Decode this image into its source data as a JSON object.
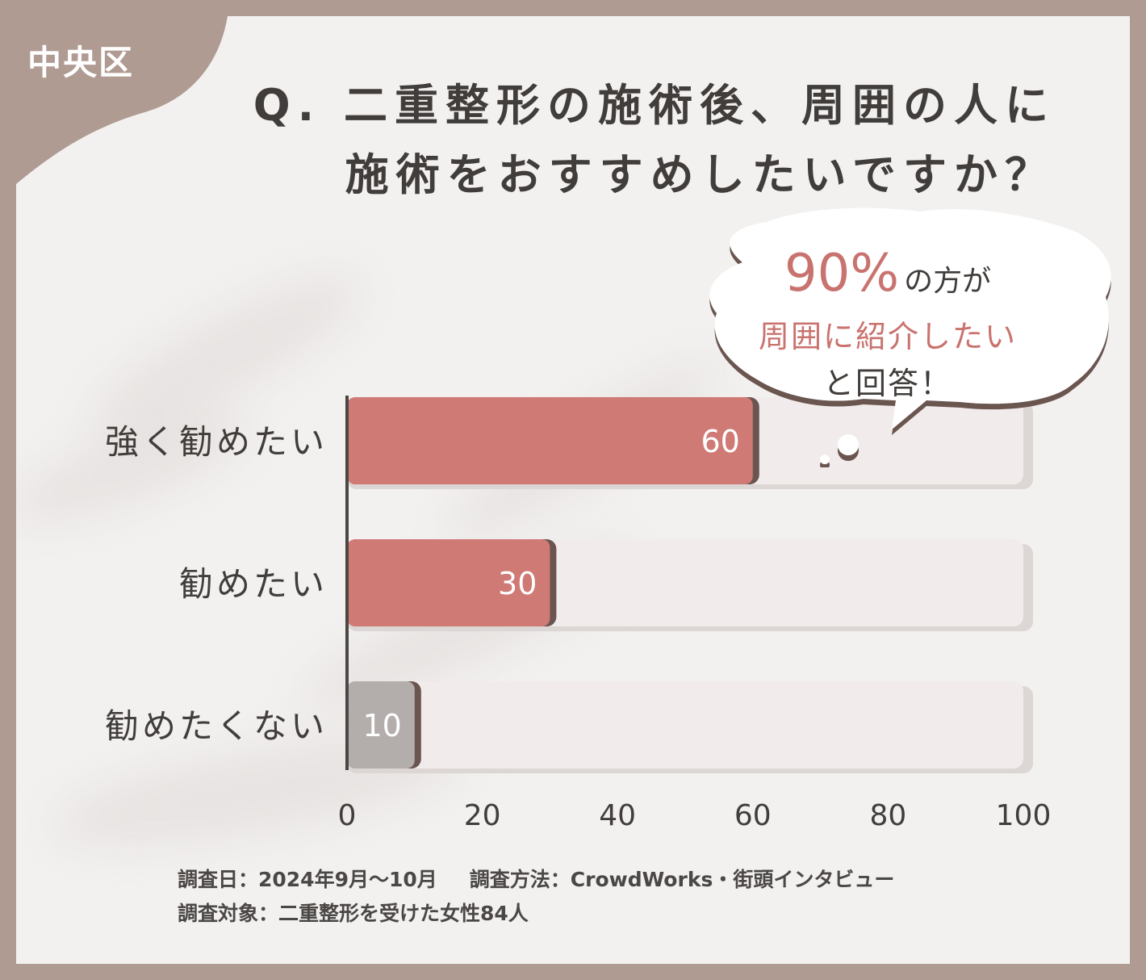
{
  "region": "中央区",
  "title": {
    "line1": "Q. 二重整形の施術後、周囲の人に",
    "line2": "施術をおすすめしたいですか？"
  },
  "callout": {
    "percent": "90%",
    "suffix": "の方が",
    "line2": "周囲に紹介したい",
    "line3": "と回答！"
  },
  "footnote": {
    "date": "調査日：2024年9月～10月",
    "method": "調査方法：CrowdWorks・街頭インタビュー",
    "target": "調査対象：二重整形を受けた女性84人"
  },
  "colors": {
    "frame": "#b09b93",
    "bar_primary": "#cf7a75",
    "bar_secondary": "#b3adab",
    "bar_track": "#f1eceb",
    "text_dark": "#403d3b",
    "accent": "#c9736f"
  },
  "chart_data": {
    "type": "bar",
    "orientation": "horizontal",
    "categories": [
      "強く勧めたい",
      "勧めたい",
      "勧めたくない"
    ],
    "values": [
      60,
      30,
      10
    ],
    "value_labels": [
      "60",
      "30",
      "10"
    ],
    "bar_colors": [
      "#cf7a75",
      "#cf7a75",
      "#b3adab"
    ],
    "xlim": [
      0,
      100
    ],
    "xticks": [
      "0",
      "20",
      "40",
      "60",
      "80",
      "100"
    ],
    "grid": false
  }
}
